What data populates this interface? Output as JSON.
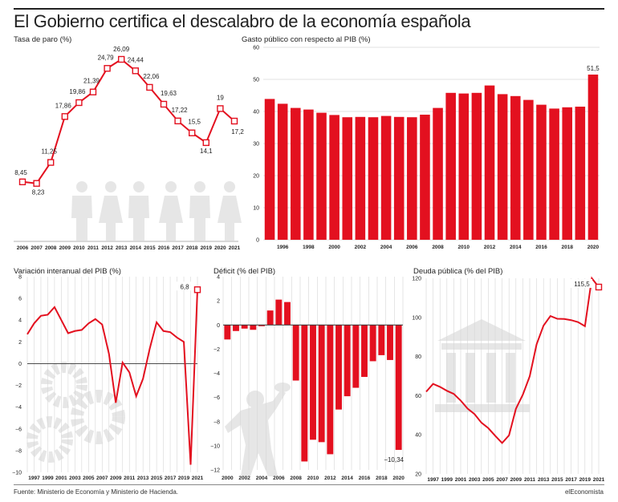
{
  "header": {
    "title": "El Gobierno certifica el descalabro de la economía española"
  },
  "footer": {
    "source": "Fuente: Ministerio de Economía y Ministerio de Hacienda.",
    "brand": "elEconomista"
  },
  "colors": {
    "accent": "#e3101f",
    "grid": "#d6d6d6",
    "silhouette": "#e6e6e6"
  },
  "icons": [
    "people-silhouettes-icon",
    "gears-icon",
    "person-throwing-icon",
    "bank-building-icon"
  ],
  "chart_data": [
    {
      "id": "paro",
      "type": "line",
      "title": "Tasa de paro (%)",
      "x": [
        "2006",
        "2007",
        "2008",
        "2009",
        "2010",
        "2011",
        "2012",
        "2013",
        "2014",
        "2015",
        "2016",
        "2017",
        "2018",
        "2019",
        "2020",
        "2021"
      ],
      "values": [
        8.45,
        8.23,
        11.25,
        17.86,
        19.86,
        21.39,
        24.79,
        26.09,
        24.44,
        22.06,
        19.63,
        17.22,
        15.5,
        14.1,
        19,
        17.2
      ],
      "labels": [
        "8,45",
        "8,23",
        "11,25",
        "17,86",
        "19,86",
        "21,39",
        "24,79",
        "26,09",
        "24,44",
        "22,06",
        "19,63",
        "17,22",
        "15,5",
        "14,1",
        "19",
        "17,2"
      ],
      "ylim": [
        0,
        28
      ],
      "grid": false
    },
    {
      "id": "gasto",
      "type": "bar",
      "title": "Gasto público con respecto al PIB (%)",
      "categories": [
        "1995",
        "1996",
        "1997",
        "1998",
        "1999",
        "2000",
        "2001",
        "2002",
        "2003",
        "2004",
        "2005",
        "2006",
        "2007",
        "2008",
        "2009",
        "2010",
        "2011",
        "2012",
        "2013",
        "2014",
        "2015",
        "2016",
        "2017",
        "2018",
        "2019",
        "2020"
      ],
      "tick_labels": [
        "1996",
        "1998",
        "2000",
        "2002",
        "2004",
        "2006",
        "2008",
        "2010",
        "2012",
        "2014",
        "2016",
        "2018",
        "2020"
      ],
      "values": [
        43.9,
        42.4,
        41.1,
        40.6,
        39.6,
        38.9,
        38.2,
        38.3,
        38.2,
        38.6,
        38.3,
        38.2,
        39.0,
        41.1,
        45.8,
        45.6,
        45.8,
        48.1,
        45.4,
        44.8,
        43.6,
        42.1,
        40.9,
        41.3,
        41.5,
        51.5
      ],
      "value_label": "51,5",
      "yticks": [
        "0",
        "10",
        "20",
        "30",
        "40",
        "50",
        "60"
      ],
      "ylim": [
        0,
        60
      ],
      "grid": true
    },
    {
      "id": "pib",
      "type": "line",
      "title": "Variación interanual del PIB (%)",
      "x": [
        "1996",
        "1997",
        "1998",
        "1999",
        "2000",
        "2001",
        "2002",
        "2003",
        "2004",
        "2005",
        "2006",
        "2007",
        "2008",
        "2009",
        "2010",
        "2011",
        "2012",
        "2013",
        "2014",
        "2015",
        "2016",
        "2017",
        "2018",
        "2019",
        "2020",
        "2021"
      ],
      "tick_labels": [
        "1997",
        "1999",
        "2001",
        "2003",
        "2005",
        "2007",
        "2009",
        "2011",
        "2013",
        "2015",
        "2017",
        "2019",
        "2021"
      ],
      "values": [
        2.7,
        3.7,
        4.4,
        4.5,
        5.2,
        4.0,
        2.8,
        3.0,
        3.1,
        3.7,
        4.1,
        3.6,
        0.9,
        -3.6,
        0.1,
        -0.8,
        -3.0,
        -1.4,
        1.4,
        3.8,
        3.0,
        2.9,
        2.4,
        2.0,
        -9.3,
        6.8
      ],
      "value_label": "6,8",
      "yticks": [
        "8",
        "6",
        "4",
        "2",
        "0",
        "−2",
        "−4",
        "−6",
        "−8",
        "−10"
      ],
      "ylim": [
        -10,
        8
      ],
      "grid": true
    },
    {
      "id": "deficit",
      "type": "bar",
      "title": "Déficit (% del PIB)",
      "categories": [
        "2000",
        "2001",
        "2002",
        "2003",
        "2004",
        "2005",
        "2006",
        "2007",
        "2008",
        "2009",
        "2010",
        "2011",
        "2012",
        "2013",
        "2014",
        "2015",
        "2016",
        "2017",
        "2018",
        "2019",
        "2020"
      ],
      "tick_labels": [
        "2000",
        "2002",
        "2004",
        "2006",
        "2008",
        "2010",
        "2012",
        "2014",
        "2016",
        "2018",
        "2020"
      ],
      "values": [
        -1.2,
        -0.5,
        -0.3,
        -0.4,
        -0.1,
        1.2,
        2.1,
        1.9,
        -4.6,
        -11.3,
        -9.5,
        -9.7,
        -10.7,
        -7.0,
        -5.9,
        -5.2,
        -4.3,
        -3.0,
        -2.5,
        -2.9,
        -10.34
      ],
      "value_label": "−10,34",
      "yticks": [
        "4",
        "2",
        "0",
        "−2",
        "−4",
        "−6",
        "−8",
        "−10",
        "−12"
      ],
      "ylim": [
        -12,
        4
      ],
      "grid": true
    },
    {
      "id": "deuda",
      "type": "line",
      "title": "Deuda pública (% del PIB)",
      "x": [
        "1996",
        "1997",
        "1998",
        "1999",
        "2000",
        "2001",
        "2002",
        "2003",
        "2004",
        "2005",
        "2006",
        "2007",
        "2008",
        "2009",
        "2010",
        "2011",
        "2012",
        "2013",
        "2014",
        "2015",
        "2016",
        "2017",
        "2018",
        "2019",
        "2020",
        "2021"
      ],
      "tick_labels": [
        "1997",
        "1999",
        "2001",
        "2003",
        "2005",
        "2007",
        "2009",
        "2011",
        "2013",
        "2015",
        "2017",
        "2019",
        "2021"
      ],
      "values": [
        62,
        66,
        64.5,
        62.5,
        60.9,
        57.5,
        53.4,
        50.6,
        46.2,
        43.4,
        39.5,
        35.8,
        39.7,
        53.3,
        60.5,
        69.9,
        86.3,
        95.8,
        100.7,
        99.3,
        99.2,
        98.6,
        97.6,
        95.5,
        120.0,
        115.5
      ],
      "value_label": "115,5",
      "yticks": [
        "120",
        "100",
        "80",
        "60",
        "40",
        "20"
      ],
      "ylim": [
        20,
        120
      ],
      "grid": true
    }
  ]
}
